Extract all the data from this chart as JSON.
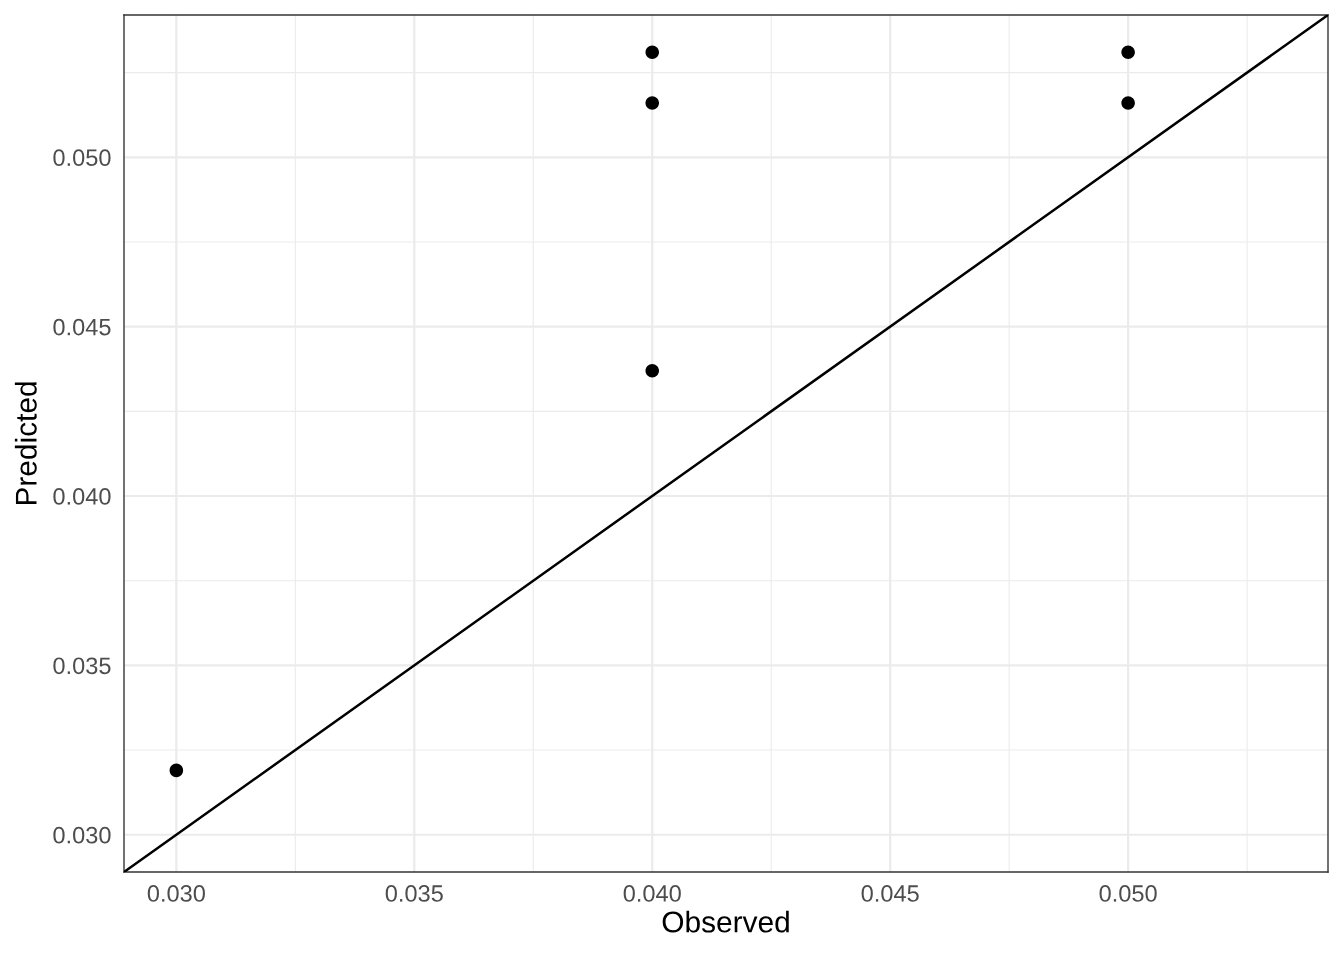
{
  "chart_data": {
    "type": "scatter",
    "xlabel": "Observed",
    "ylabel": "Predicted",
    "series": [
      {
        "color": "#000000",
        "marker": "circle",
        "x": [
          0.03,
          0.04,
          0.04,
          0.04,
          0.05,
          0.05
        ],
        "values": [
          0.0319,
          0.0531,
          0.0516,
          0.0437,
          0.0531,
          0.0516
        ]
      },
      {
        "type": "line",
        "color": "#000000",
        "line_style": "solid",
        "x": [
          0.0289,
          0.0542
        ],
        "values": [
          0.0289,
          0.0542
        ]
      }
    ],
    "xlim": [
      0.0289,
      0.0542
    ],
    "xticks": [
      {
        "value": 0.03,
        "label": "0.030"
      },
      {
        "value": 0.035,
        "label": "0.035"
      },
      {
        "value": 0.04,
        "label": "0.040"
      },
      {
        "value": 0.045,
        "label": "0.045"
      },
      {
        "value": 0.05,
        "label": "0.050"
      }
    ],
    "ylim": [
      0.0289,
      0.0542
    ],
    "yticks": [
      {
        "value": 0.03,
        "label": "0.030"
      },
      {
        "value": 0.035,
        "label": "0.035"
      },
      {
        "value": 0.04,
        "label": "0.040"
      },
      {
        "value": 0.045,
        "label": "0.045"
      },
      {
        "value": 0.05,
        "label": "0.050"
      }
    ],
    "grid": true
  }
}
